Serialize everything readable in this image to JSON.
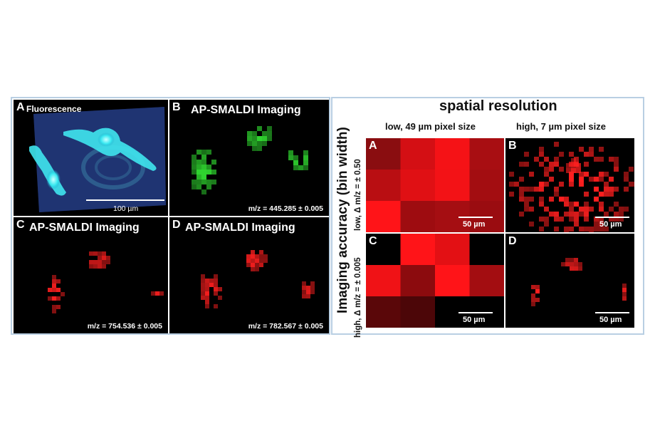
{
  "left_figure": {
    "panel_a": {
      "letter": "A",
      "label": "Fluorescence",
      "scalebar": "100 µm"
    },
    "panel_b": {
      "letter": "B",
      "title": "AP-SMALDI Imaging",
      "mz": "m/z = 445.285 ± 0.005",
      "color": "#2fd32f"
    },
    "panel_c": {
      "letter": "C",
      "title": "AP-SMALDI Imaging",
      "mz": "m/z = 754.536 ± 0.005",
      "color": "#ff1f1f"
    },
    "panel_d": {
      "letter": "D",
      "title": "AP-SMALDI Imaging",
      "mz": "m/z = 782.567 ± 0.005",
      "color": "#ff1f1f"
    }
  },
  "right_figure": {
    "title": "spatial resolution",
    "col_low": "low, 49 µm pixel size",
    "col_high": "high, 7 µm pixel size",
    "y_axis_title": "Imaging accuracy (bin width)",
    "row_low": "low, Δ m/z = ± 0.50",
    "row_high": "high, Δ m/z = ± 0.005",
    "panels": [
      {
        "letter": "A",
        "scalebar": "50 µm"
      },
      {
        "letter": "B",
        "scalebar": "50 µm"
      },
      {
        "letter": "C",
        "scalebar": "50 µm"
      },
      {
        "letter": "D",
        "scalebar": "50 µm"
      }
    ]
  }
}
